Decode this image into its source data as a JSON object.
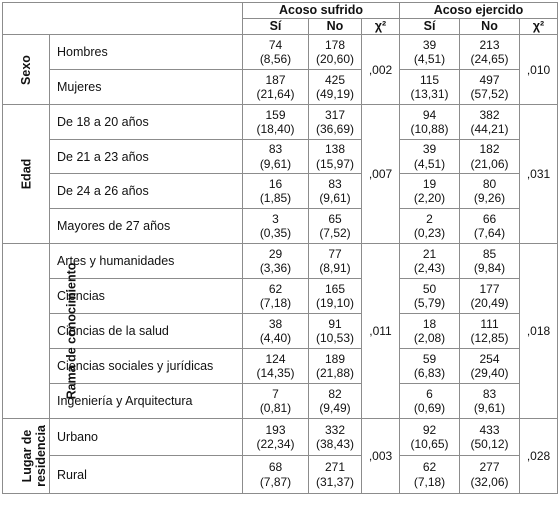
{
  "headers": {
    "acoso_sufrido": "Acoso sufrido",
    "acoso_ejercido": "Acoso ejercido",
    "si": "Sí",
    "no": "No",
    "chi": "χ²"
  },
  "groups": [
    {
      "label": "Sexo",
      "chi_sufrido": ",002",
      "chi_ejercido": ",010",
      "rows": [
        {
          "label": "Hombres",
          "s_si": [
            "74",
            "(8,56)"
          ],
          "s_no": [
            "178",
            "(20,60)"
          ],
          "e_si": [
            "39",
            "(4,51)"
          ],
          "e_no": [
            "213",
            "(24,65)"
          ]
        },
        {
          "label": "Mujeres",
          "s_si": [
            "187",
            "(21,64)"
          ],
          "s_no": [
            "425",
            "(49,19)"
          ],
          "e_si": [
            "115",
            "(13,31)"
          ],
          "e_no": [
            "497",
            "(57,52)"
          ]
        }
      ]
    },
    {
      "label": "Edad",
      "chi_sufrido": ",007",
      "chi_ejercido": ",031",
      "rows": [
        {
          "label": "De 18 a 20 años",
          "s_si": [
            "159",
            "(18,40)"
          ],
          "s_no": [
            "317",
            "(36,69)"
          ],
          "e_si": [
            "94",
            "(10,88)"
          ],
          "e_no": [
            "382",
            "(44,21)"
          ]
        },
        {
          "label": "De 21 a 23 años",
          "s_si": [
            "83",
            "(9,61)"
          ],
          "s_no": [
            "138",
            "(15,97)"
          ],
          "e_si": [
            "39",
            "(4,51)"
          ],
          "e_no": [
            "182",
            "(21,06)"
          ]
        },
        {
          "label": "De 24 a 26 años",
          "s_si": [
            "16",
            "(1,85)"
          ],
          "s_no": [
            "83",
            "(9,61)"
          ],
          "e_si": [
            "19",
            "(2,20)"
          ],
          "e_no": [
            "80",
            "(9,26)"
          ]
        },
        {
          "label": "Mayores de 27 años",
          "s_si": [
            "3",
            "(0,35)"
          ],
          "s_no": [
            "65",
            "(7,52)"
          ],
          "e_si": [
            "2",
            "(0,23)"
          ],
          "e_no": [
            "66",
            "(7,64)"
          ]
        }
      ]
    },
    {
      "label": "Rama de conocimiento",
      "chi_sufrido": ",011",
      "chi_ejercido": ",018",
      "rows": [
        {
          "label": "Artes y humanidades",
          "s_si": [
            "29",
            "(3,36)"
          ],
          "s_no": [
            "77",
            "(8,91)"
          ],
          "e_si": [
            "21",
            "(2,43)"
          ],
          "e_no": [
            "85",
            "(9,84)"
          ]
        },
        {
          "label": "Ciencias",
          "s_si": [
            "62",
            "(7,18)"
          ],
          "s_no": [
            "165",
            "(19,10)"
          ],
          "e_si": [
            "50",
            "(5,79)"
          ],
          "e_no": [
            "177",
            "(20,49)"
          ]
        },
        {
          "label": "Ciencias de la salud",
          "s_si": [
            "38",
            "(4,40)"
          ],
          "s_no": [
            "91",
            "(10,53)"
          ],
          "e_si": [
            "18",
            "(2,08)"
          ],
          "e_no": [
            "111",
            "(12,85)"
          ]
        },
        {
          "label": "Ciencias sociales y jurídicas",
          "s_si": [
            "124",
            "(14,35)"
          ],
          "s_no": [
            "189",
            "(21,88)"
          ],
          "e_si": [
            "59",
            "(6,83)"
          ],
          "e_no": [
            "254",
            "(29,40)"
          ]
        },
        {
          "label": "Ingeniería y Arquitectura",
          "s_si": [
            "7",
            "(0,81)"
          ],
          "s_no": [
            "82",
            "(9,49)"
          ],
          "e_si": [
            "6",
            "(0,69)"
          ],
          "e_no": [
            "83",
            "(9,61)"
          ]
        }
      ]
    },
    {
      "label": "Lugar de residencia",
      "label_lines": [
        "Lugar de",
        "residencia"
      ],
      "chi_sufrido": ",003",
      "chi_ejercido": ",028",
      "rows": [
        {
          "label": "Urbano",
          "s_si": [
            "193",
            "(22,34)"
          ],
          "s_no": [
            "332",
            "(38,43)"
          ],
          "e_si": [
            "92",
            "(10,65)"
          ],
          "e_no": [
            "433",
            "(50,12)"
          ]
        },
        {
          "label": "Rural",
          "s_si": [
            "68",
            "(7,87)"
          ],
          "s_no": [
            "271",
            "(31,37)"
          ],
          "e_si": [
            "62",
            "(7,18)"
          ],
          "e_no": [
            "277",
            "(32,06)"
          ]
        }
      ]
    }
  ]
}
